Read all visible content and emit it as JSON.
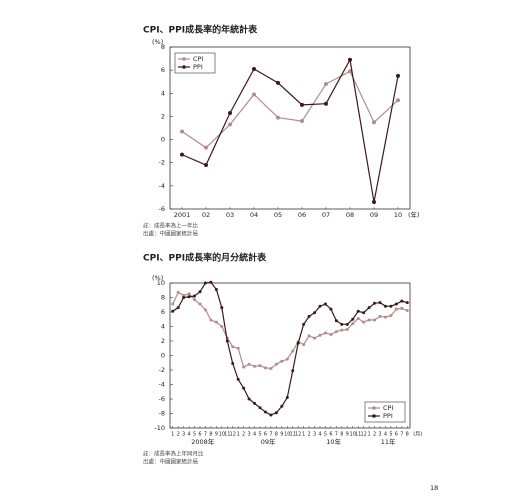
{
  "page_number": 18,
  "chart_data": [
    {
      "type": "line",
      "title": "CPI、PPI成長率的年統計表",
      "y_unit": "(%)",
      "x_unit": "(年)",
      "categories": [
        "2001",
        "02",
        "03",
        "04",
        "05",
        "06",
        "07",
        "08",
        "09",
        "10"
      ],
      "series": [
        {
          "name": "CPI",
          "color": "#b38c8c",
          "values": [
            0.7,
            -0.7,
            1.3,
            3.9,
            1.9,
            1.6,
            4.8,
            5.9,
            1.5,
            3.4
          ]
        },
        {
          "name": "PPI",
          "color": "#3b1a1c",
          "values": [
            -1.3,
            -2.2,
            2.3,
            6.1,
            4.9,
            3.0,
            3.1,
            6.9,
            -5.4,
            5.5
          ]
        }
      ],
      "ylim": [
        -6,
        8
      ],
      "yticks": [
        -6,
        -4,
        -2,
        0,
        2,
        4,
        6,
        8
      ],
      "legend": "top-left",
      "notes": [
        "註：成長率為上一年比",
        "出處：中國國家統計局"
      ]
    },
    {
      "type": "line",
      "title": "CPI、PPI成長率的月分統計表",
      "y_unit": "(%)",
      "x_unit": "(月)",
      "categories": [
        "1",
        "2",
        "3",
        "4",
        "5",
        "6",
        "7",
        "8",
        "9",
        "10",
        "11",
        "12",
        "1",
        "2",
        "3",
        "4",
        "5",
        "6",
        "7",
        "8",
        "9",
        "10",
        "11",
        "12",
        "1",
        "2",
        "3",
        "4",
        "5",
        "6",
        "7",
        "8",
        "9",
        "10",
        "11",
        "12",
        "1",
        "2",
        "3",
        "4",
        "5",
        "6",
        "7",
        "8"
      ],
      "year_labels": [
        "2008年",
        "09年",
        "10年",
        "11年"
      ],
      "series": [
        {
          "name": "CPI",
          "color": "#b38c8c",
          "values": [
            7.1,
            8.7,
            8.3,
            8.5,
            7.7,
            7.1,
            6.3,
            4.9,
            4.6,
            4.0,
            2.4,
            1.2,
            1.0,
            -1.6,
            -1.2,
            -1.5,
            -1.4,
            -1.7,
            -1.8,
            -1.2,
            -0.8,
            -0.5,
            0.6,
            1.9,
            1.5,
            2.7,
            2.4,
            2.8,
            3.1,
            2.9,
            3.3,
            3.5,
            3.6,
            4.4,
            5.1,
            4.6,
            4.9,
            4.9,
            5.4,
            5.3,
            5.5,
            6.4,
            6.5,
            6.2
          ]
        },
        {
          "name": "PPI",
          "color": "#3b1a1c",
          "values": [
            6.1,
            6.6,
            8.0,
            8.1,
            8.2,
            8.8,
            10.0,
            10.1,
            9.1,
            6.6,
            2.0,
            -1.1,
            -3.3,
            -4.5,
            -6.0,
            -6.6,
            -7.2,
            -7.8,
            -8.2,
            -7.9,
            -7.0,
            -5.8,
            -2.1,
            1.7,
            4.3,
            5.4,
            5.9,
            6.8,
            7.1,
            6.4,
            4.8,
            4.3,
            4.3,
            5.0,
            6.1,
            5.9,
            6.6,
            7.2,
            7.3,
            6.8,
            6.8,
            7.1,
            7.5,
            7.3
          ]
        }
      ],
      "ylim": [
        -10,
        10
      ],
      "yticks": [
        -10,
        -8,
        -6,
        -4,
        -2,
        0,
        2,
        4,
        6,
        8,
        10
      ],
      "legend": "bottom-right",
      "notes": [
        "註：成長率為上年同月比",
        "出處：中國國家統計局"
      ]
    }
  ]
}
